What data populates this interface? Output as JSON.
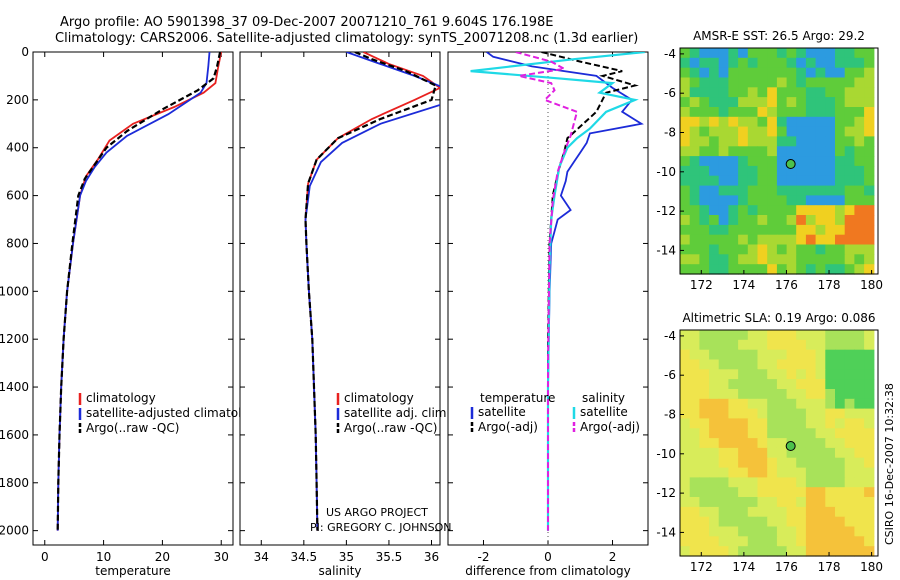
{
  "header": {
    "line1": "Argo profile: AO 5901398_37 09-Dec-2007 20071210_761 9.604S 176.198E",
    "line2": "Climatology: CARS2006. Satellite-adjusted climatology: synTS_20071208.nc (1.3d earlier)"
  },
  "credits": {
    "project": "US ARGO PROJECT",
    "pi": "PI: GREGORY C. JOHNSON",
    "stamp": "CSIRO 16-Dec-2007 10:32:38"
  },
  "colors": {
    "climatology": "#e8211f",
    "satellite": "#1c2bd8",
    "argo": "#000000",
    "sat_salinity": "#1fd9e6",
    "argo_salinity": "#e020e0"
  },
  "chart_data": [
    {
      "type": "line",
      "id": "temperature",
      "xlabel": "temperature",
      "ylabel": "",
      "xlim": [
        -2,
        32
      ],
      "ylim": [
        2060,
        0
      ],
      "xticks": [
        0,
        10,
        20,
        30
      ],
      "yticks": [
        0,
        200,
        400,
        600,
        800,
        1000,
        1200,
        1400,
        1600,
        1800,
        2000
      ],
      "legend": [
        "climatology",
        "satellite-adjusted climatology",
        "Argo(..raw -QC)"
      ],
      "series": [
        {
          "key": "clim",
          "x": [
            30,
            29.5,
            29,
            27,
            22,
            15,
            11,
            9,
            7,
            6,
            4.8,
            3.8,
            3.2,
            2.8,
            2.5,
            2.3,
            2.2
          ],
          "y": [
            0,
            60,
            130,
            170,
            230,
            300,
            370,
            450,
            520,
            600,
            800,
            1000,
            1200,
            1400,
            1600,
            1800,
            2000
          ]
        },
        {
          "key": "sat",
          "x": [
            28,
            27.8,
            27.5,
            26.5,
            21,
            14,
            10.5,
            8.5,
            7,
            6,
            4.8,
            3.8,
            3.2,
            2.8,
            2.5,
            2.3,
            2.2
          ],
          "y": [
            0,
            60,
            130,
            170,
            260,
            350,
            420,
            480,
            540,
            600,
            800,
            1000,
            1200,
            1400,
            1600,
            1800,
            2000
          ]
        },
        {
          "key": "argo",
          "x": [
            29.8,
            29.3,
            28.7,
            26,
            20,
            14,
            10.5,
            8.5,
            6.8,
            5.7,
            4.7,
            3.8,
            3.2,
            2.8,
            2.5,
            2.3,
            2.2
          ],
          "y": [
            0,
            60,
            110,
            160,
            240,
            330,
            400,
            470,
            530,
            600,
            800,
            1000,
            1200,
            1400,
            1600,
            1800,
            2000
          ]
        }
      ]
    },
    {
      "type": "line",
      "id": "salinity",
      "xlabel": "salinity",
      "ylabel": "",
      "xlim": [
        33.75,
        36.1
      ],
      "ylim": [
        2060,
        0
      ],
      "xticks": [
        34,
        34.5,
        35,
        35.5,
        36
      ],
      "legend": [
        "climatology",
        "satellite adj. clim.",
        "Argo(..raw -QC)"
      ],
      "series": [
        {
          "key": "clim",
          "x": [
            35.2,
            35.5,
            35.9,
            36.1,
            35.8,
            35.3,
            34.9,
            34.65,
            34.55,
            34.52,
            34.53,
            34.56,
            34.6,
            34.62,
            34.64,
            34.65,
            34.66
          ],
          "y": [
            0,
            50,
            100,
            150,
            200,
            280,
            360,
            450,
            550,
            700,
            800,
            1000,
            1200,
            1400,
            1600,
            1800,
            2000
          ]
        },
        {
          "key": "sat",
          "x": [
            35.0,
            35.4,
            35.8,
            36.15,
            36.2,
            35.4,
            34.95,
            34.7,
            34.57,
            34.52,
            34.53,
            34.56,
            34.6,
            34.62,
            34.64,
            34.65,
            34.66
          ],
          "y": [
            0,
            50,
            100,
            150,
            210,
            300,
            380,
            460,
            560,
            700,
            800,
            1000,
            1200,
            1400,
            1600,
            1800,
            2000
          ]
        },
        {
          "key": "argo",
          "x": [
            35.1,
            35.3,
            35.7,
            36.05,
            36.0,
            35.4,
            34.9,
            34.65,
            34.55,
            34.52,
            34.53,
            34.56,
            34.6,
            34.62,
            34.64,
            34.65,
            34.66
          ],
          "y": [
            0,
            30,
            80,
            140,
            200,
            280,
            360,
            450,
            550,
            700,
            800,
            1000,
            1200,
            1400,
            1600,
            1800,
            2000
          ]
        }
      ]
    },
    {
      "type": "line",
      "id": "difference",
      "xlabel": "difference from climatology",
      "ylabel": "",
      "xlim": [
        -3.1,
        3.1
      ],
      "ylim": [
        2060,
        0
      ],
      "xticks": [
        -2,
        0,
        2
      ],
      "legend_temperature_header": "temperature",
      "legend_salinity_header": "salinity",
      "legend_temperature": [
        "satellite",
        "Argo(-adj)"
      ],
      "legend_salinity": [
        "satellite",
        "Argo(-adj)"
      ],
      "series": [
        {
          "key": "t_sat",
          "x": [
            -1.9,
            -1.7,
            -0.5,
            1.5,
            2.0,
            2.6,
            2.3,
            2.9,
            1.3,
            1.2,
            1.0,
            0.8,
            0.6,
            0.55,
            0.4,
            0.7,
            0.3,
            0.2,
            0.1,
            0.05,
            0,
            0,
            0
          ],
          "y": [
            0,
            20,
            60,
            100,
            150,
            200,
            250,
            300,
            340,
            380,
            420,
            460,
            500,
            540,
            600,
            660,
            700,
            750,
            800,
            1000,
            1400,
            1800,
            2000
          ]
        },
        {
          "key": "t_argo",
          "x": [
            -0.2,
            1.0,
            2.3,
            1.7,
            2.7,
            1.8,
            1.5,
            0.6,
            0.5,
            0.4,
            0.25,
            0.15,
            0.1,
            0.05,
            0,
            0,
            0
          ],
          "y": [
            0,
            40,
            80,
            100,
            140,
            170,
            250,
            360,
            420,
            460,
            540,
            600,
            700,
            800,
            1200,
            1600,
            2000
          ]
        },
        {
          "key": "s_sat",
          "x": [
            3.0,
            0.8,
            -2.4,
            0.3,
            2.0,
            1.6,
            2.7,
            1.8,
            1.3,
            0.9,
            0.6,
            0.35,
            0.2,
            0.1,
            0.05,
            0,
            0
          ],
          "y": [
            0,
            30,
            80,
            110,
            130,
            170,
            200,
            250,
            320,
            360,
            400,
            480,
            600,
            700,
            900,
            1400,
            2000
          ]
        },
        {
          "key": "s_argo",
          "x": [
            -1.0,
            0.1,
            0.5,
            -0.9,
            0.1,
            0.2,
            -0.1,
            0.9,
            0.8,
            0.7,
            0.5,
            0.3,
            0.15,
            0.05,
            0,
            0
          ],
          "y": [
            0,
            40,
            70,
            100,
            130,
            160,
            200,
            250,
            300,
            350,
            420,
            500,
            620,
            800,
            1300,
            2000
          ]
        }
      ]
    },
    {
      "type": "heatmap",
      "id": "sst_map",
      "title": "AMSR-E SST: 26.5 Argo: 29.2",
      "xlim": [
        171,
        180.3
      ],
      "ylim": [
        -15.2,
        -3.7
      ],
      "xticks": [
        172,
        174,
        176,
        178,
        180
      ],
      "yticks": [
        -4,
        -6,
        -8,
        -10,
        -12,
        -14
      ],
      "float_position": {
        "lon": 176.198,
        "lat": -9.604
      }
    },
    {
      "type": "heatmap",
      "id": "sla_map",
      "title": "Altimetric SLA: 0.19 Argo: 0.086",
      "xlim": [
        171,
        180.3
      ],
      "ylim": [
        -15.2,
        -3.7
      ],
      "xticks": [
        172,
        174,
        176,
        178,
        180
      ],
      "yticks": [
        -4,
        -6,
        -8,
        -10,
        -12,
        -14
      ],
      "float_position": {
        "lon": 176.198,
        "lat": -9.604
      }
    }
  ]
}
